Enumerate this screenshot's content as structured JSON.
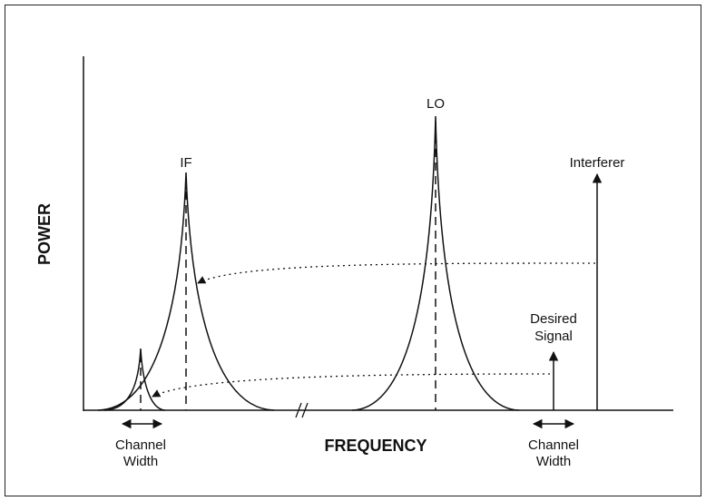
{
  "axes": {
    "y_label": "POWER",
    "x_label": "FREQUENCY"
  },
  "peaks": {
    "if": "IF",
    "lo": "LO"
  },
  "signals": {
    "interferer": "Interferer",
    "desired": [
      "Desired",
      "Signal"
    ]
  },
  "channel_width_left": [
    "Channel",
    "Width"
  ],
  "channel_width_right": [
    "Channel",
    "Width"
  ]
}
